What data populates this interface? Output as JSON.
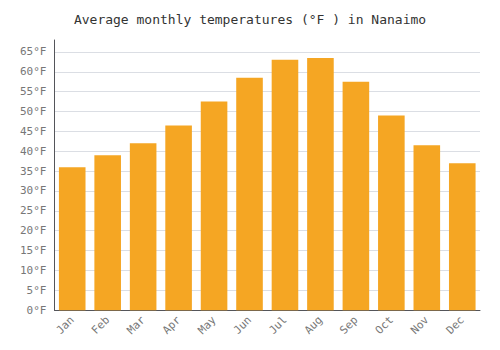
{
  "chart_data": {
    "type": "bar",
    "title": "Average monthly temperatures (°F ) in Nanaimo",
    "categories": [
      "Jan",
      "Feb",
      "Mar",
      "Apr",
      "May",
      "Jun",
      "Jul",
      "Aug",
      "Sep",
      "Oct",
      "Nov",
      "Dec"
    ],
    "values": [
      36,
      39,
      42,
      46.5,
      52.5,
      58.5,
      63,
      63.5,
      57.5,
      49,
      41.5,
      37
    ],
    "color": "#F5A623",
    "ylim": [
      0,
      68
    ],
    "yticks": [
      {
        "value": 0,
        "label": "0°F"
      },
      {
        "value": 5,
        "label": "5°F"
      },
      {
        "value": 10,
        "label": "10°F"
      },
      {
        "value": 15,
        "label": "15°F"
      },
      {
        "value": 20,
        "label": "20°F"
      },
      {
        "value": 25,
        "label": "25°F"
      },
      {
        "value": 30,
        "label": "30°F"
      },
      {
        "value": 35,
        "label": "35°F"
      },
      {
        "value": 40,
        "label": "40°F"
      },
      {
        "value": 45,
        "label": "45°F"
      },
      {
        "value": 50,
        "label": "50°F"
      },
      {
        "value": 55,
        "label": "55°F"
      },
      {
        "value": 60,
        "label": "60°F"
      },
      {
        "value": 65,
        "label": "65°F"
      }
    ],
    "grid": true
  }
}
